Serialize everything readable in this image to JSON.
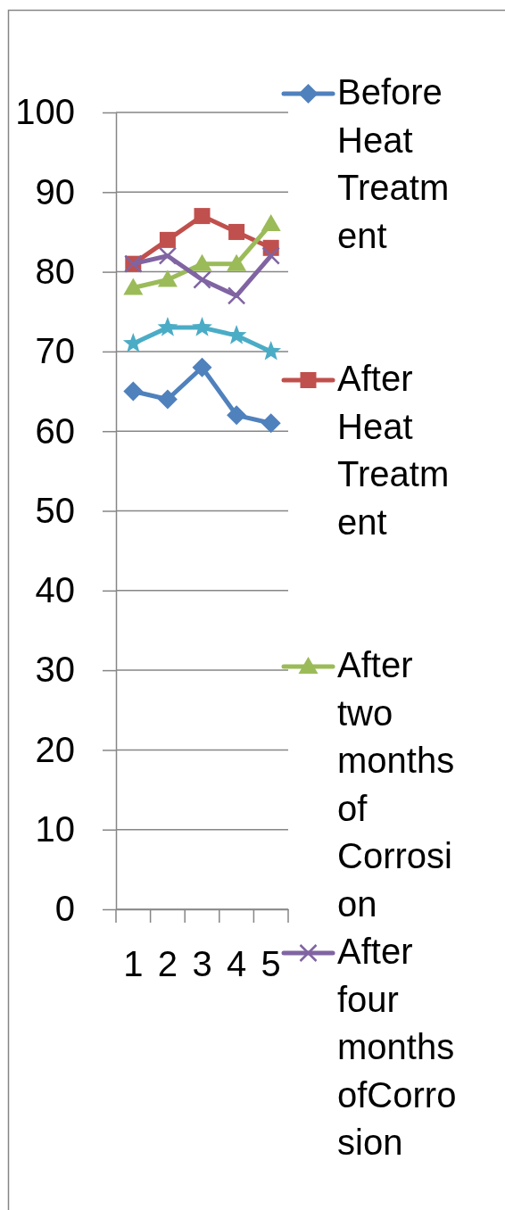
{
  "chart_data": {
    "type": "line",
    "categories": [
      "1",
      "2",
      "3",
      "4",
      "5"
    ],
    "ylim": [
      0,
      100
    ],
    "yticks": [
      0,
      10,
      20,
      30,
      40,
      50,
      60,
      70,
      80,
      90,
      100
    ],
    "grid": "y",
    "legend": "right",
    "line_style": "solid",
    "series": [
      {
        "name": "Before Heat Treatment",
        "color": "#4f81bd",
        "marker": "diamond",
        "values": [
          65,
          64,
          68,
          62,
          61
        ]
      },
      {
        "name": "After Heat Treatment",
        "color": "#c0504d",
        "marker": "square",
        "values": [
          81,
          84,
          87,
          85,
          83
        ]
      },
      {
        "name": "After two months of Corrosion",
        "color": "#9bbb59",
        "marker": "triangle",
        "values": [
          78,
          79,
          81,
          81,
          86
        ]
      },
      {
        "name": "After four months ofCorrosion",
        "color": "#8064a2",
        "marker": "cross",
        "values": [
          81,
          82,
          79,
          77,
          82
        ]
      },
      {
        "color": "#4bacc6",
        "marker": "star",
        "values": [
          71,
          73,
          73,
          72,
          70
        ]
      }
    ]
  }
}
